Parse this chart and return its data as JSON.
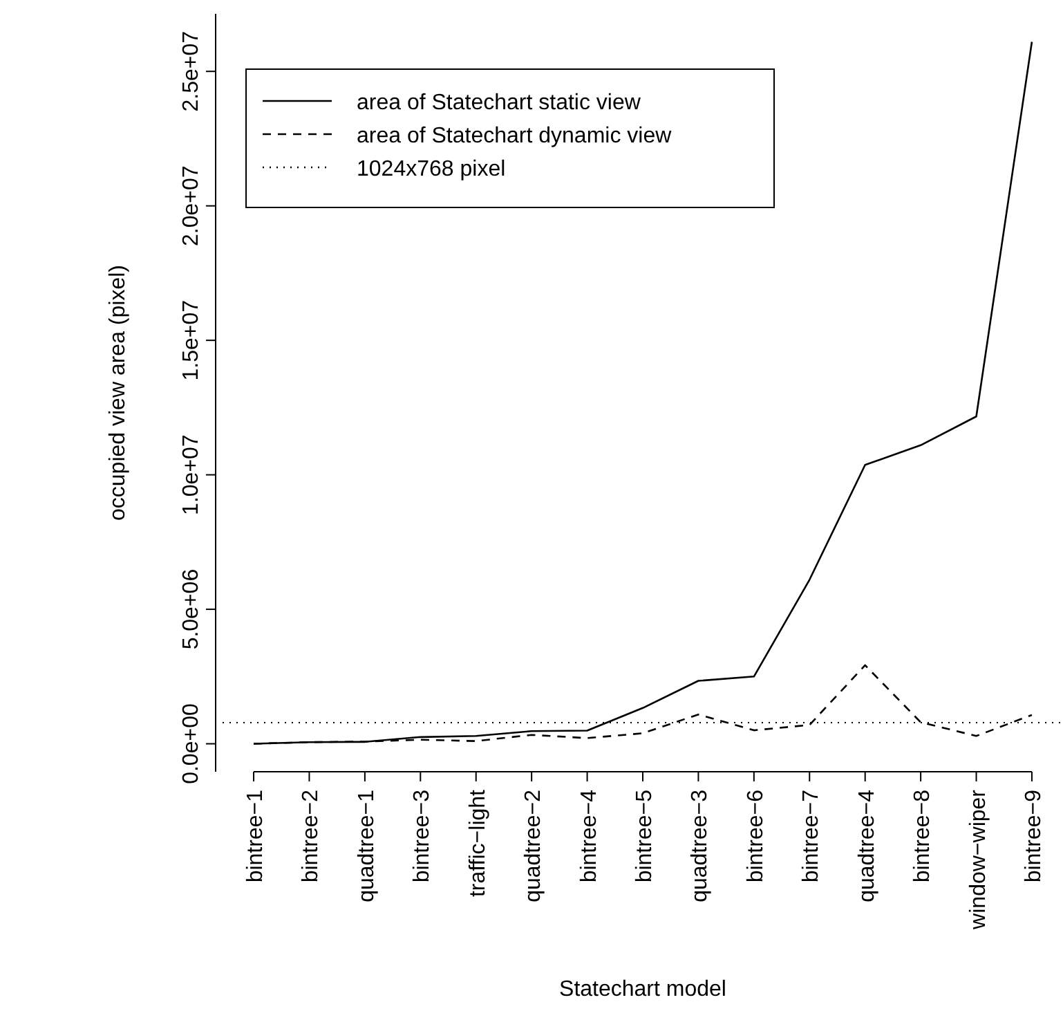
{
  "chart_data": {
    "type": "line",
    "xlabel": "Statechart model",
    "ylabel": "occupied view area (pixel)",
    "categories": [
      "bintree−1",
      "bintree−2",
      "quadtree−1",
      "bintree−3",
      "traffic−light",
      "quadtree−2",
      "bintree−4",
      "bintree−5",
      "quadtree−3",
      "bintree−6",
      "bintree−7",
      "quadtree−4",
      "bintree−8",
      "window−wiper",
      "bintree−9"
    ],
    "series": [
      {
        "name": "area of Statechart static view",
        "color": "#000000",
        "line_style": "solid",
        "values": [
          0,
          60000,
          70000,
          250000,
          290000,
          470000,
          490000,
          1330000,
          2340000,
          2500000,
          6100000,
          10370000,
          11100000,
          12170000,
          26100000
        ]
      },
      {
        "name": "area of Statechart dynamic view",
        "color": "#000000",
        "line_style": "dashed",
        "values": [
          0,
          60000,
          80000,
          150000,
          100000,
          330000,
          210000,
          390000,
          1090000,
          500000,
          700000,
          2920000,
          800000,
          290000,
          1070000
        ]
      }
    ],
    "ref_lines": [
      {
        "axis": "y",
        "value": 786432,
        "label": "1024x768 pixel",
        "color": "#000000",
        "line_style": "dotted"
      }
    ],
    "ylim": [
      -1040000,
      27140000
    ],
    "yticks": [
      {
        "value": 0,
        "label": "0.0e+00"
      },
      {
        "value": 5000000,
        "label": "5.0e+06"
      },
      {
        "value": 10000000,
        "label": "1.0e+07"
      },
      {
        "value": 15000000,
        "label": "1.5e+07"
      },
      {
        "value": 20000000,
        "label": "2.0e+07"
      },
      {
        "value": 25000000,
        "label": "2.5e+07"
      }
    ],
    "grid": false,
    "legend": "top left",
    "marker": "none"
  }
}
